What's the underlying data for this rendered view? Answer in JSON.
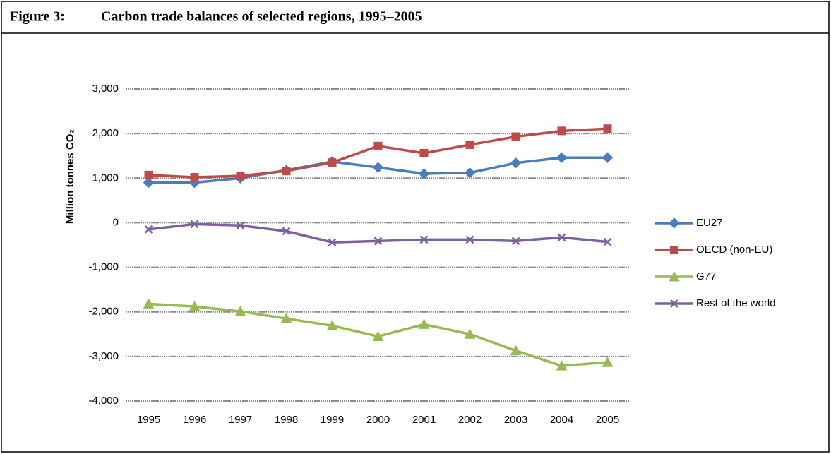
{
  "figure_label": "Figure 3:",
  "chart_data": {
    "type": "line",
    "title": "Carbon trade balances of selected regions, 1995–2005",
    "y_label": "Million tonnes CO₂",
    "categories": [
      "1995",
      "1996",
      "1997",
      "1998",
      "1999",
      "2000",
      "2001",
      "2002",
      "2003",
      "2004",
      "2005"
    ],
    "series": [
      {
        "name": "EU27",
        "color": "#4a7ebb",
        "marker": "diamond",
        "values": [
          900,
          900,
          1000,
          1180,
          1370,
          1240,
          1100,
          1120,
          1340,
          1460,
          1460
        ]
      },
      {
        "name": "OECD (non-EU)",
        "color": "#be4b48",
        "marker": "square",
        "values": [
          1070,
          1020,
          1050,
          1160,
          1350,
          1720,
          1560,
          1750,
          1930,
          2060,
          2110
        ]
      },
      {
        "name": "G77",
        "color": "#98b954",
        "marker": "triangle",
        "values": [
          -1820,
          -1880,
          -1990,
          -2150,
          -2310,
          -2550,
          -2280,
          -2500,
          -2870,
          -3210,
          -3130
        ]
      },
      {
        "name": "Rest of the world",
        "color": "#7d60a0",
        "marker": "x",
        "values": [
          -150,
          -30,
          -60,
          -190,
          -440,
          -410,
          -380,
          -380,
          -410,
          -330,
          -430
        ]
      }
    ],
    "ylim": [
      -4000,
      3000
    ],
    "yticks": [
      {
        "value": -4000,
        "label": "-4,000"
      },
      {
        "value": -3000,
        "label": "-3,000"
      },
      {
        "value": -2000,
        "label": "-2,000"
      },
      {
        "value": -1000,
        "label": "-1,000"
      },
      0,
      {
        "value": 1000,
        "label": "1,000"
      },
      {
        "value": 2000,
        "label": "2,000"
      },
      {
        "value": 3000,
        "label": "3,000"
      }
    ],
    "grid": true,
    "legend": "right"
  }
}
